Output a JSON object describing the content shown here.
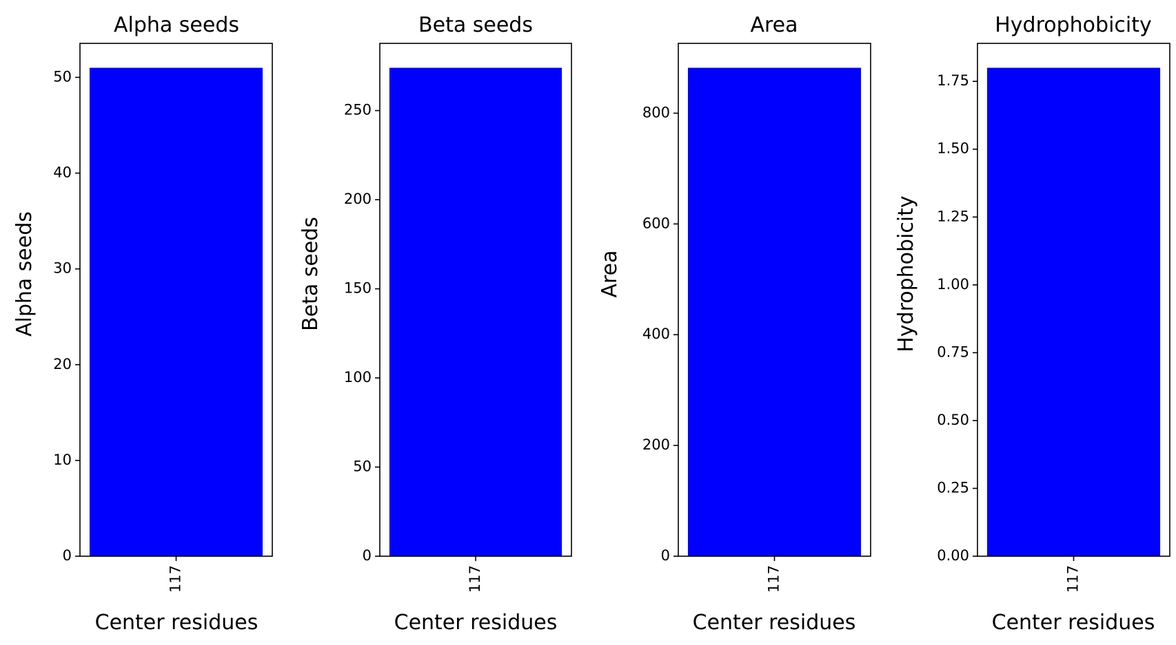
{
  "chart_data": [
    {
      "type": "bar",
      "title": "Alpha seeds",
      "xlabel": "Center residues",
      "ylabel": "Alpha seeds",
      "categories": [
        "117"
      ],
      "values": [
        51
      ],
      "ylim": [
        0,
        53.55
      ],
      "yticks": [
        0,
        10,
        20,
        30,
        40,
        50
      ],
      "ytick_labels": [
        "0",
        "10",
        "20",
        "30",
        "40",
        "50"
      ],
      "bar_color": "#0000ff",
      "grid": false
    },
    {
      "type": "bar",
      "title": "Beta seeds",
      "xlabel": "Center residues",
      "ylabel": "Beta seeds",
      "categories": [
        "117"
      ],
      "values": [
        274
      ],
      "ylim": [
        0,
        287.7
      ],
      "yticks": [
        0,
        50,
        100,
        150,
        200,
        250
      ],
      "ytick_labels": [
        "0",
        "50",
        "100",
        "150",
        "200",
        "250"
      ],
      "bar_color": "#0000ff",
      "grid": false
    },
    {
      "type": "bar",
      "title": "Area",
      "xlabel": "Center residues",
      "ylabel": "Area",
      "categories": [
        "117"
      ],
      "values": [
        882
      ],
      "ylim": [
        0,
        926.1
      ],
      "yticks": [
        0,
        200,
        400,
        600,
        800
      ],
      "ytick_labels": [
        "0",
        "200",
        "400",
        "600",
        "800"
      ],
      "bar_color": "#0000ff",
      "grid": false
    },
    {
      "type": "bar",
      "title": "Hydrophobicity",
      "xlabel": "Center residues",
      "ylabel": "Hydrophobicity",
      "categories": [
        "117"
      ],
      "values": [
        1.8
      ],
      "ylim": [
        0,
        1.89
      ],
      "yticks": [
        0,
        0.25,
        0.5,
        0.75,
        1.0,
        1.25,
        1.5,
        1.75
      ],
      "ytick_labels": [
        "0.00",
        "0.25",
        "0.50",
        "0.75",
        "1.00",
        "1.25",
        "1.50",
        "1.75"
      ],
      "bar_color": "#0000ff",
      "grid": false
    }
  ]
}
